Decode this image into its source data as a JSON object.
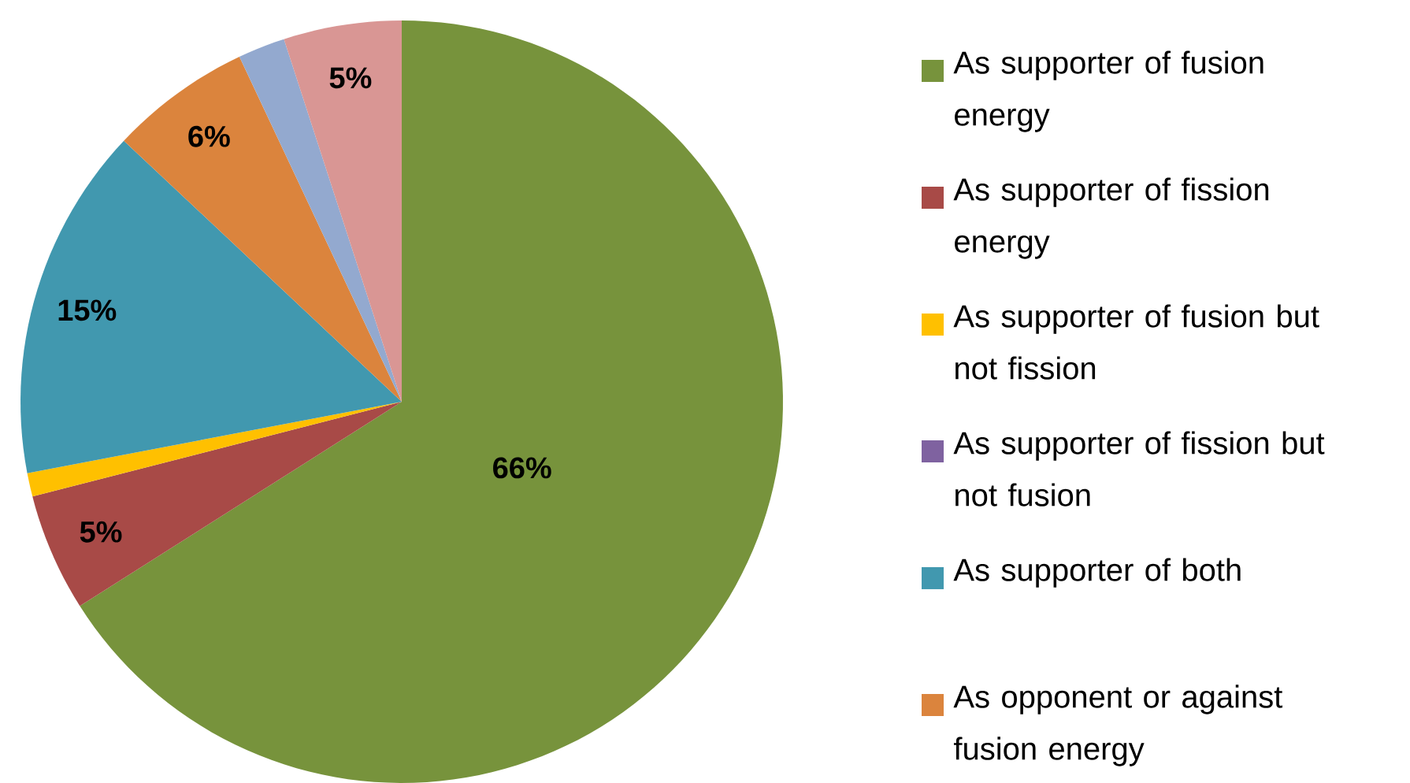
{
  "chart_data": {
    "type": "pie",
    "categories": [
      "As supporter of fusion energy",
      "As supporter of fission energy",
      "As supporter of fusion but not fission",
      "As supporter of fission but not fusion",
      "As supporter of both",
      "As opponent or against fusion energy",
      null,
      null
    ],
    "values": [
      66,
      5,
      1,
      0,
      15,
      6,
      2,
      5
    ],
    "colors": [
      "#77933c",
      "#a84a47",
      "#ffc000",
      "#7f62a0",
      "#4198af",
      "#db843d",
      "#93a9cf",
      "#d99694"
    ],
    "value_labels": [
      "66%",
      "5%",
      null,
      null,
      "15%",
      "6%",
      null,
      "5%"
    ],
    "legend": "right"
  }
}
